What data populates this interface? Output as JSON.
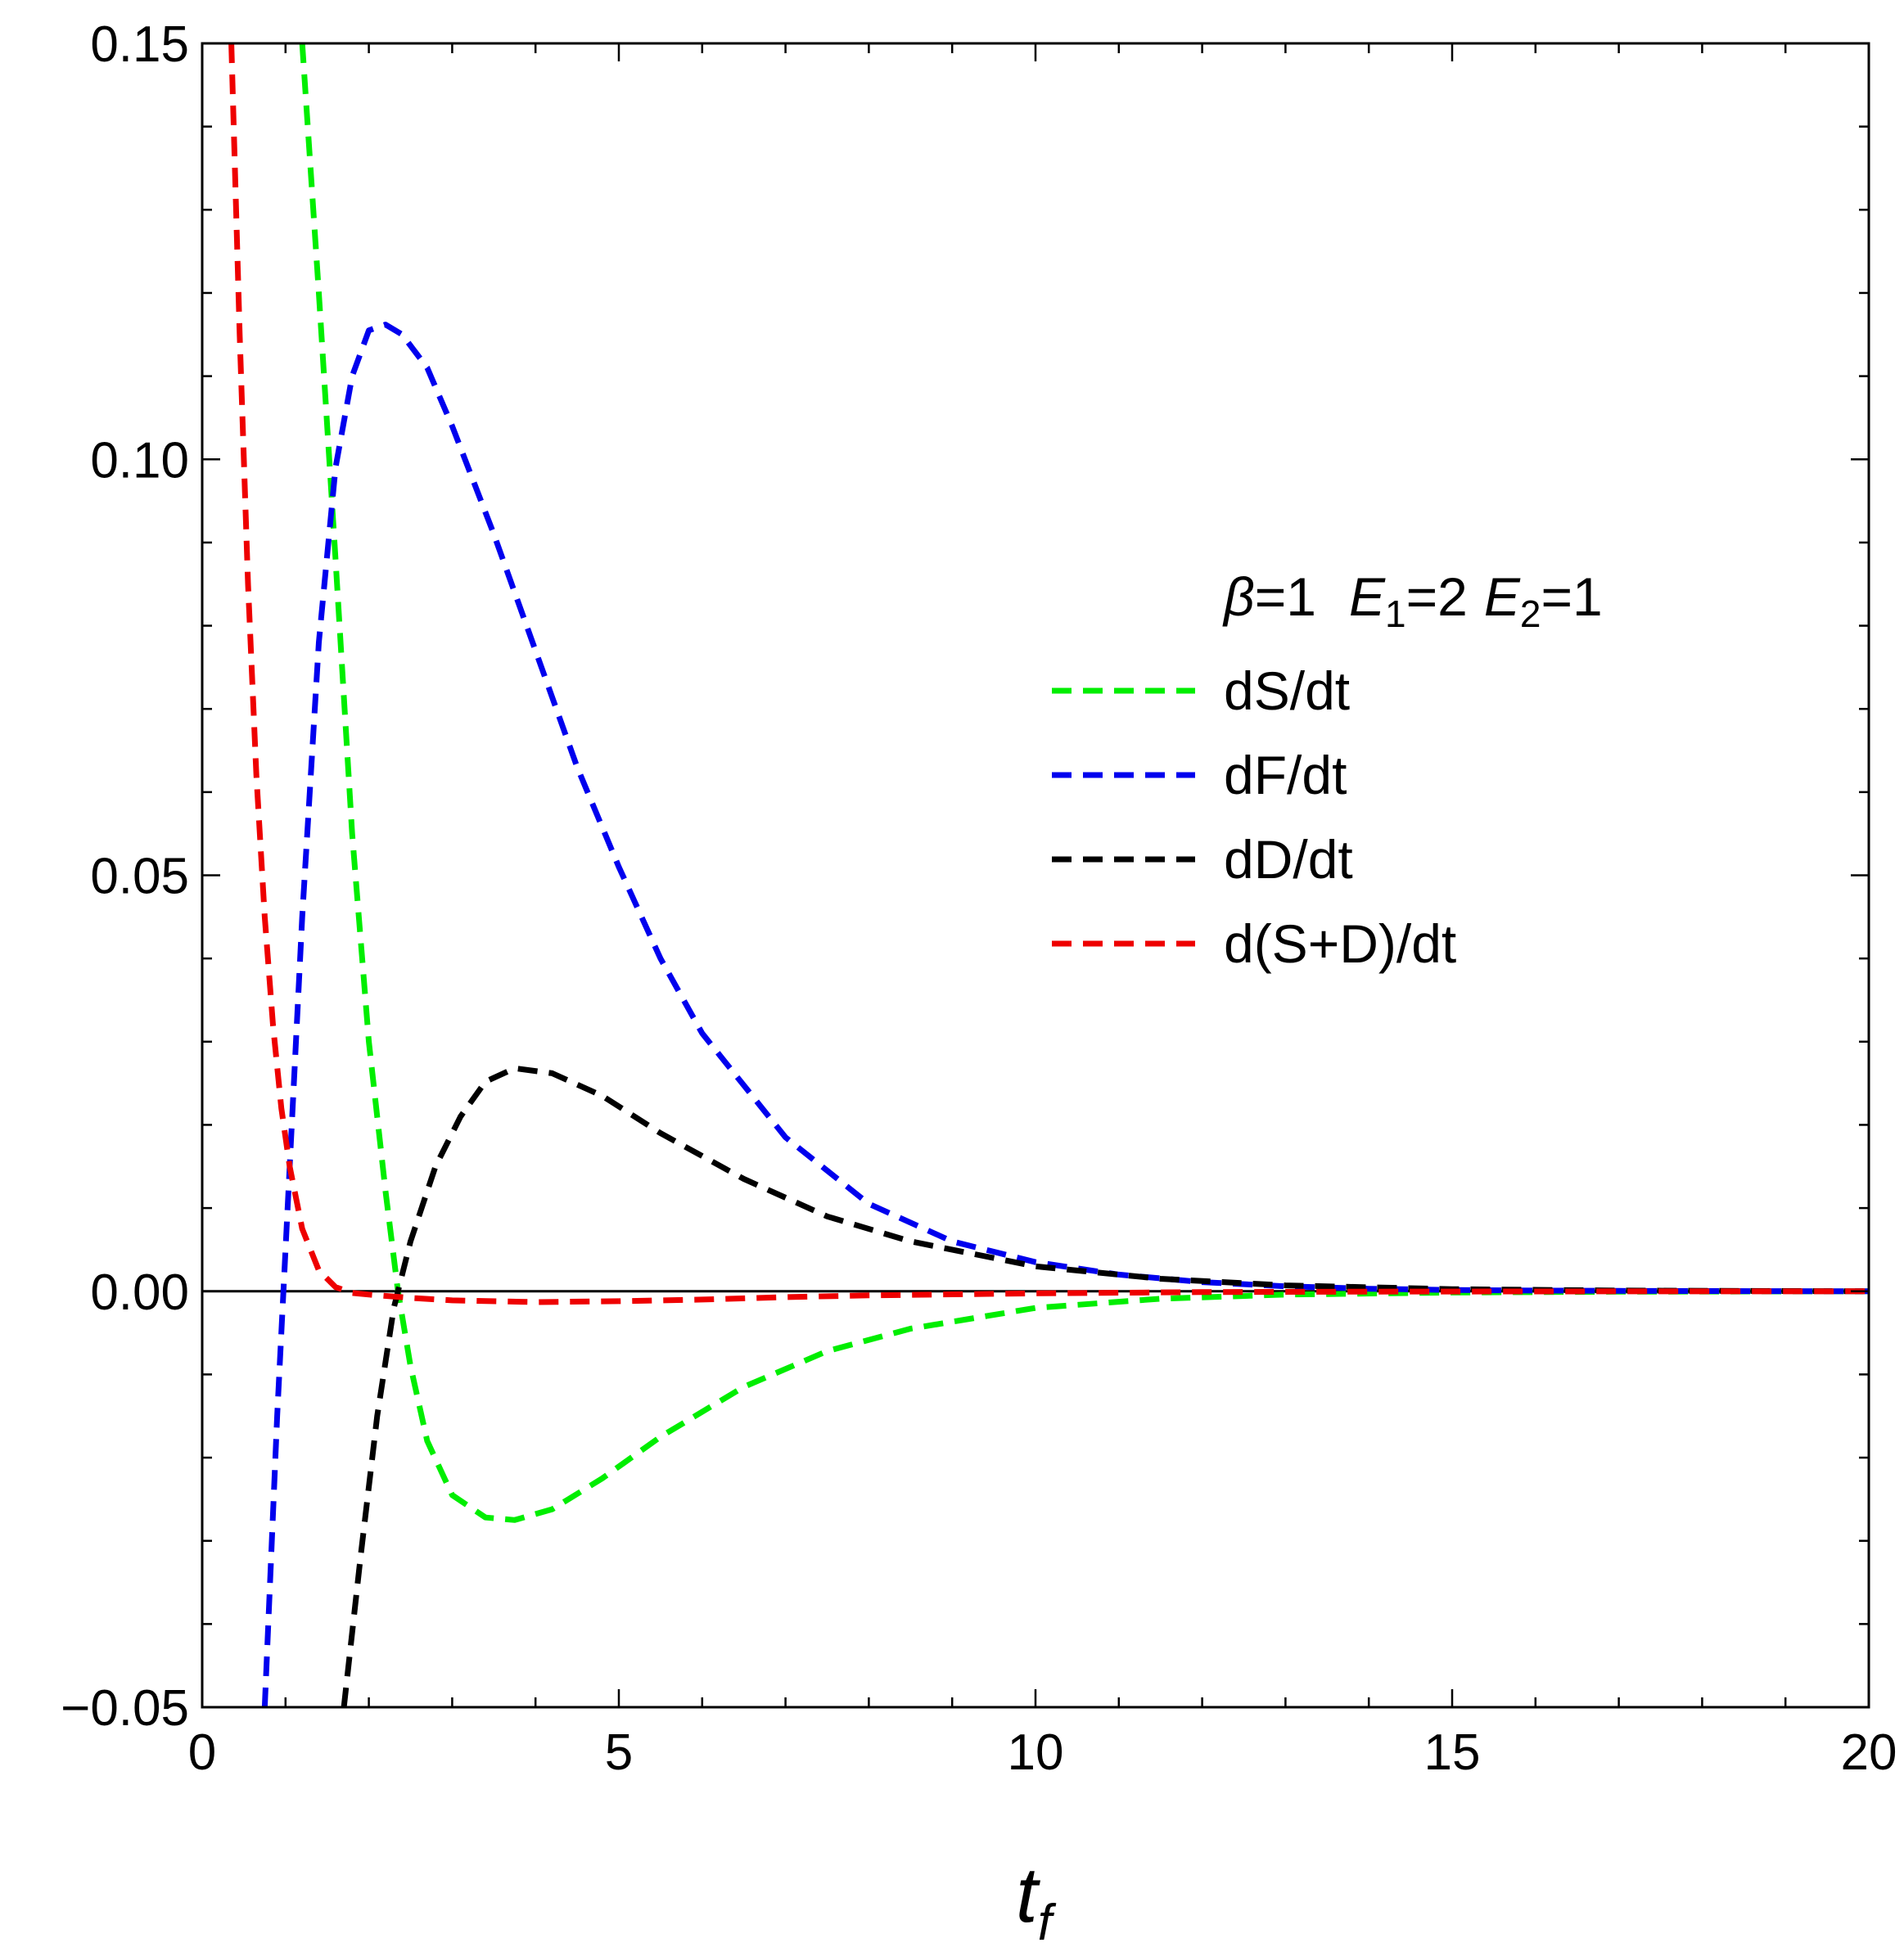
{
  "chart_data": {
    "type": "line",
    "xlabel": "t",
    "xlabel_sub": "f",
    "ylabel": "",
    "xlim": [
      0,
      20
    ],
    "ylim": [
      -0.05,
      0.15
    ],
    "x_ticks": [
      0,
      5,
      10,
      15,
      20
    ],
    "x_tick_labels": [
      "0",
      "5",
      "10",
      "15",
      "20"
    ],
    "y_ticks": [
      -0.05,
      0,
      0.05,
      0.1,
      0.15
    ],
    "y_tick_labels": [
      "−0.05",
      "0.00",
      "0.05",
      "0.10",
      "0.15"
    ],
    "grid": false,
    "legend_position": "right",
    "params": {
      "beta_sym": "β",
      "beta_val": "=1",
      "e1_sym": "E",
      "e1_sub": "1",
      "e1_val": "=2",
      "e2_sym": "E",
      "e2_sub": "2",
      "e2_val": "=1"
    },
    "series": [
      {
        "name": "dS/dt",
        "color": "#00ee00",
        "x": [
          1.2,
          1.4,
          1.6,
          1.8,
          2.0,
          2.2,
          2.35,
          2.5,
          2.7,
          3.0,
          3.4,
          3.75,
          4.2,
          4.8,
          5.5,
          6.5,
          7.5,
          8.5,
          10.0,
          11.5,
          13.0,
          15.0,
          17.0,
          20.0
        ],
        "y": [
          0.15,
          0.12,
          0.088,
          0.055,
          0.03,
          0.012,
          0.0,
          -0.009,
          -0.018,
          -0.0245,
          -0.0272,
          -0.0275,
          -0.0262,
          -0.0225,
          -0.0175,
          -0.0115,
          -0.0072,
          -0.0045,
          -0.002,
          -0.0009,
          -0.0004,
          -0.00015,
          -5e-05,
          0.0
        ]
      },
      {
        "name": "dF/dt",
        "color": "#0000ee",
        "x": [
          0.75,
          0.9,
          1.0,
          1.2,
          1.4,
          1.6,
          1.8,
          2.0,
          2.2,
          2.4,
          2.7,
          3.0,
          3.5,
          4.0,
          4.5,
          5.0,
          5.5,
          6.0,
          7.0,
          8.0,
          9.0,
          10.0,
          11.0,
          12.0,
          13.0,
          14.0,
          15.0,
          16.0,
          17.0,
          18.0,
          20.0
        ],
        "y": [
          -0.05,
          -0.015,
          0.005,
          0.045,
          0.078,
          0.099,
          0.11,
          0.1155,
          0.1162,
          0.115,
          0.111,
          0.104,
          0.091,
          0.077,
          0.063,
          0.051,
          0.04,
          0.031,
          0.0185,
          0.0105,
          0.006,
          0.0035,
          0.002,
          0.0011,
          0.0006,
          0.0003,
          0.00015,
          8e-05,
          4e-05,
          2e-05,
          0.0
        ]
      },
      {
        "name": "dD/dt",
        "color": "#000000",
        "x": [
          1.7,
          1.9,
          2.1,
          2.3,
          2.35,
          2.5,
          2.8,
          3.1,
          3.4,
          3.75,
          4.2,
          4.8,
          5.5,
          6.5,
          7.5,
          8.5,
          10.0,
          11.5,
          13.0,
          15.0,
          17.0,
          20.0
        ],
        "y": [
          -0.05,
          -0.032,
          -0.015,
          -0.002,
          0.0,
          0.006,
          0.015,
          0.021,
          0.0252,
          0.0268,
          0.0262,
          0.0235,
          0.019,
          0.0135,
          0.009,
          0.006,
          0.003,
          0.0015,
          0.0007,
          0.00025,
          8e-05,
          0.0
        ]
      },
      {
        "name": "d(S+D)/dt",
        "color": "#ee0000",
        "x": [
          0.35,
          0.45,
          0.55,
          0.65,
          0.75,
          0.85,
          0.95,
          1.05,
          1.2,
          1.4,
          1.6,
          1.8,
          2.0,
          2.5,
          3.0,
          4.0,
          5.0,
          6.0,
          7.0,
          8.0,
          10.0,
          12.0,
          14.0,
          17.0,
          20.0
        ],
        "y": [
          0.15,
          0.115,
          0.085,
          0.062,
          0.045,
          0.032,
          0.022,
          0.015,
          0.0075,
          0.0025,
          0.0005,
          -0.0002,
          -0.0004,
          -0.0008,
          -0.0011,
          -0.0013,
          -0.0012,
          -0.001,
          -0.0007,
          -0.0005,
          -0.00025,
          -0.0001,
          -4e-05,
          -1e-05,
          0.0
        ]
      }
    ]
  }
}
